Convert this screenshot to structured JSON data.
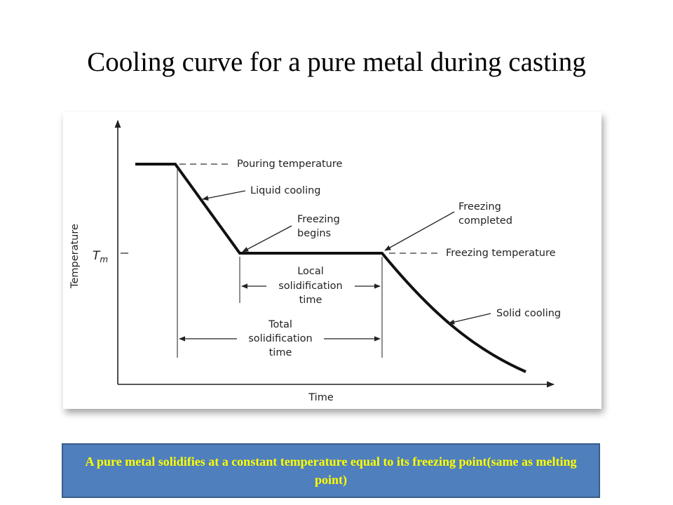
{
  "slide": {
    "title": "Cooling curve for a pure metal during casting",
    "diagram": {
      "y_axis_label": "Temperature",
      "y_tick_label": {
        "symbol": "T",
        "subscript": "m"
      },
      "x_axis_label": "Time",
      "pouring_temperature": "Pouring temperature",
      "liquid_cooling": "Liquid cooling",
      "freezing_begins": [
        "Freezing",
        "begins"
      ],
      "freezing_completed": [
        "Freezing",
        "completed"
      ],
      "freezing_temperature": "Freezing temperature",
      "local_solidification_time": [
        "Local",
        "solidification",
        "time"
      ],
      "solid_cooling": "Solid cooling",
      "total_solidification_time": [
        "Total",
        "solidification",
        "time"
      ]
    },
    "caption": "A pure metal solidifies  at a constant temperature equal to its freezing point(same as melting point)"
  }
}
